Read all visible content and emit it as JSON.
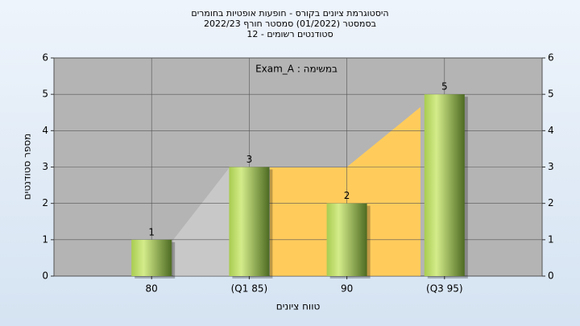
{
  "chart_data": {
    "type": "bar",
    "title": [
      "היסטוגרמת ציונים בקורס - חופעות אופטיות בחומרים",
      "בסמסטר (01/2022) סמסטר חורף 2022/23",
      "סטודנטים רשומים - 12"
    ],
    "annotation": "במשימה : Exam_A",
    "categories": [
      "80",
      "(Q1 85)",
      "90",
      "(Q3 95)"
    ],
    "values": [
      1,
      3,
      2,
      5
    ],
    "ylim": [
      0,
      6
    ],
    "yticks": [
      0,
      1,
      2,
      3,
      4,
      5,
      6
    ],
    "y2lim": [
      0,
      6
    ],
    "y2ticks": [
      0,
      1,
      2,
      3,
      4,
      5,
      6
    ],
    "x_label": "טווח ציונים",
    "y_label": "מספר סטודנטים",
    "grid": true
  }
}
